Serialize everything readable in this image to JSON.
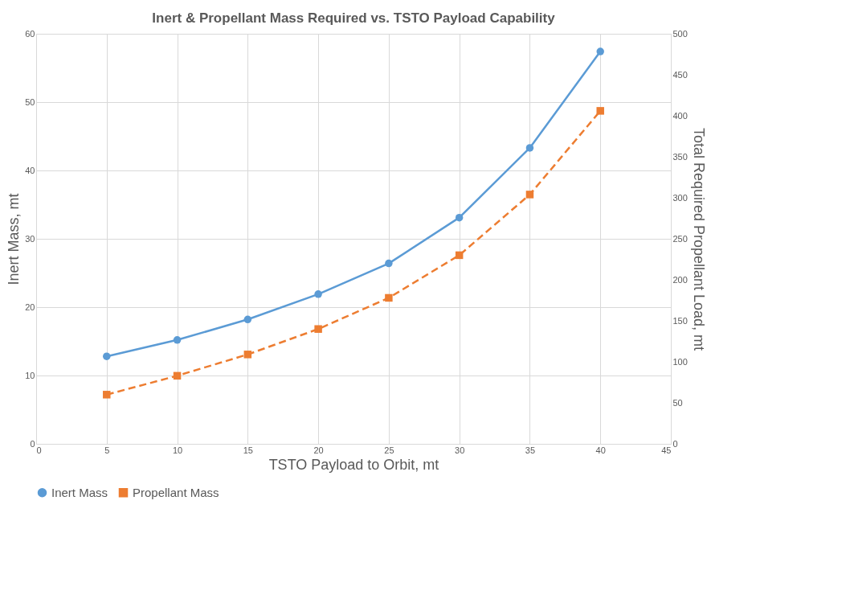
{
  "chart_data": {
    "type": "line",
    "title": "Inert & Propellant Mass Required vs. TSTO Payload Capability",
    "xlabel": "TSTO Payload to Orbit, mt",
    "ylabel": "Inert Mass, mt",
    "y2label": "Total Required Propellant Load, mt",
    "x": [
      5,
      10,
      15,
      20,
      25,
      30,
      35,
      40
    ],
    "series": [
      {
        "name": "Inert Mass",
        "color": "#5b9bd5",
        "marker": "circle",
        "line_style": "solid",
        "values": [
          12.8,
          15.2,
          18.2,
          21.9,
          26.4,
          33.1,
          43.3,
          57.4
        ]
      },
      {
        "name": "Propellant Mass",
        "color": "#ed7d31",
        "marker": "square",
        "line_style": "dashed",
        "axis": "y2",
        "values": [
          60,
          83,
          109,
          140,
          178,
          230,
          304,
          406
        ]
      }
    ],
    "xlim": [
      0,
      45
    ],
    "xticks": [
      0,
      5,
      10,
      15,
      20,
      25,
      30,
      35,
      40,
      45
    ],
    "ylim": [
      0,
      60
    ],
    "yticks": [
      0,
      10,
      20,
      30,
      40,
      50,
      60
    ],
    "y2lim": [
      0,
      500
    ],
    "y2ticks": [
      0,
      50,
      100,
      150,
      200,
      250,
      300,
      350,
      400,
      450,
      500
    ],
    "grid": true,
    "legend": "bottom"
  }
}
